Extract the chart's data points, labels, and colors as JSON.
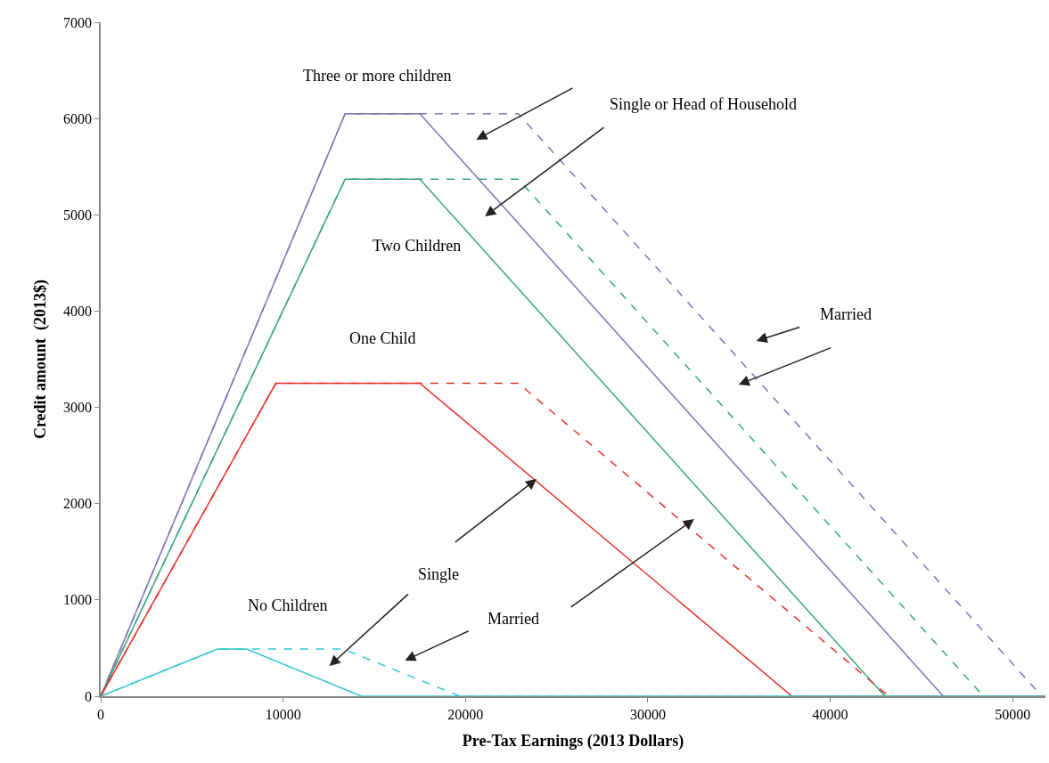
{
  "chart_data": {
    "type": "line",
    "xlabel": "Pre-Tax Earnings (2013 Dollars)",
    "ylabel": "Credit amount  (2013$)",
    "xlim": [
      0,
      51800
    ],
    "xticks": [
      0,
      10000,
      20000,
      30000,
      40000,
      50000
    ],
    "ylim": [
      0,
      7000
    ],
    "yticks": [
      0,
      1000,
      2000,
      3000,
      4000,
      5000,
      6000,
      7000
    ],
    "legend": false,
    "marker": "none",
    "series": [
      {
        "color": "#7b74b8",
        "line_style": "solid",
        "x": [
          0,
          13400,
          17500,
          46200,
          51800
        ],
        "values": [
          0,
          6050,
          6050,
          0,
          0
        ]
      },
      {
        "color": "#7b74b8",
        "line_style": "dashed",
        "x": [
          0,
          13400,
          22900,
          51600,
          51800
        ],
        "values": [
          0,
          6050,
          6050,
          0,
          0
        ]
      },
      {
        "color": "#3aa57c",
        "line_style": "solid",
        "x": [
          0,
          13400,
          17500,
          43000,
          51800
        ],
        "values": [
          0,
          5370,
          5370,
          0,
          0
        ]
      },
      {
        "color": "#3aa57c",
        "line_style": "dashed",
        "x": [
          0,
          13400,
          22900,
          48400,
          51800
        ],
        "values": [
          0,
          5370,
          5370,
          0,
          0
        ]
      },
      {
        "color": "#e8302a",
        "line_style": "solid",
        "x": [
          0,
          9600,
          17500,
          37900,
          51800
        ],
        "values": [
          0,
          3250,
          3250,
          0,
          0
        ]
      },
      {
        "color": "#e8302a",
        "line_style": "dashed",
        "x": [
          0,
          9600,
          22900,
          43200,
          51800
        ],
        "values": [
          0,
          3250,
          3250,
          0,
          0
        ]
      },
      {
        "color": "#33c6cc",
        "line_style": "solid",
        "x": [
          0,
          6400,
          8000,
          14300,
          51800
        ],
        "values": [
          0,
          490,
          490,
          0,
          0
        ]
      },
      {
        "color": "#33c6cc",
        "line_style": "dashed",
        "x": [
          0,
          6400,
          13300,
          19700,
          51800
        ],
        "values": [
          0,
          490,
          490,
          0,
          0
        ]
      }
    ],
    "annotations": [
      "Three or more children",
      "Single or Head of Household",
      "Two Children",
      "Married",
      "One Child",
      "Single",
      "No Children",
      "Married"
    ]
  }
}
